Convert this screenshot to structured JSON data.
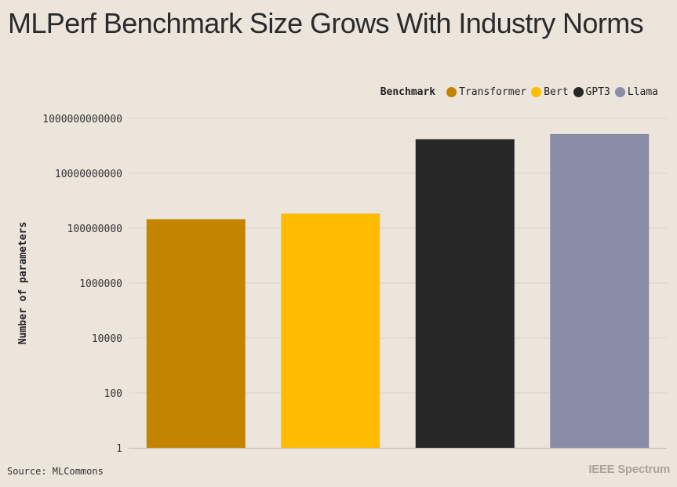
{
  "title": "MLPerf Benchmark Size Grows With Industry Norms",
  "legend": {
    "title": "Benchmark",
    "items": [
      {
        "label": "Transformer",
        "color": "#c38500"
      },
      {
        "label": "Bert",
        "color": "#ffbc00"
      },
      {
        "label": "GPT3",
        "color": "#272727"
      },
      {
        "label": "Llama",
        "color": "#8b8ca8"
      }
    ]
  },
  "footer": {
    "source": "Source: MLCommons",
    "brand": "IEEE Spectrum"
  },
  "chart_data": {
    "type": "bar",
    "scale": "log",
    "title": "MLPerf Benchmark Size Grows With Industry Norms",
    "xlabel": "",
    "ylabel": "Number of parameters",
    "categories": [
      "Transformer",
      "Bert",
      "GPT3",
      "Llama"
    ],
    "values": [
      213000000,
      340000000,
      175000000000,
      270000000000
    ],
    "colors": [
      "#c38500",
      "#ffbc00",
      "#272727",
      "#8b8ca8"
    ],
    "yticks": [
      1,
      100,
      10000,
      1000000,
      100000000,
      10000000000,
      1000000000000
    ],
    "ytick_labels": [
      "1",
      "100",
      "10000",
      "1000000",
      "100000000",
      "10000000000",
      "1000000000000"
    ],
    "ylim": [
      1,
      1000000000000
    ],
    "grid": true,
    "legend_position": "top-right"
  }
}
